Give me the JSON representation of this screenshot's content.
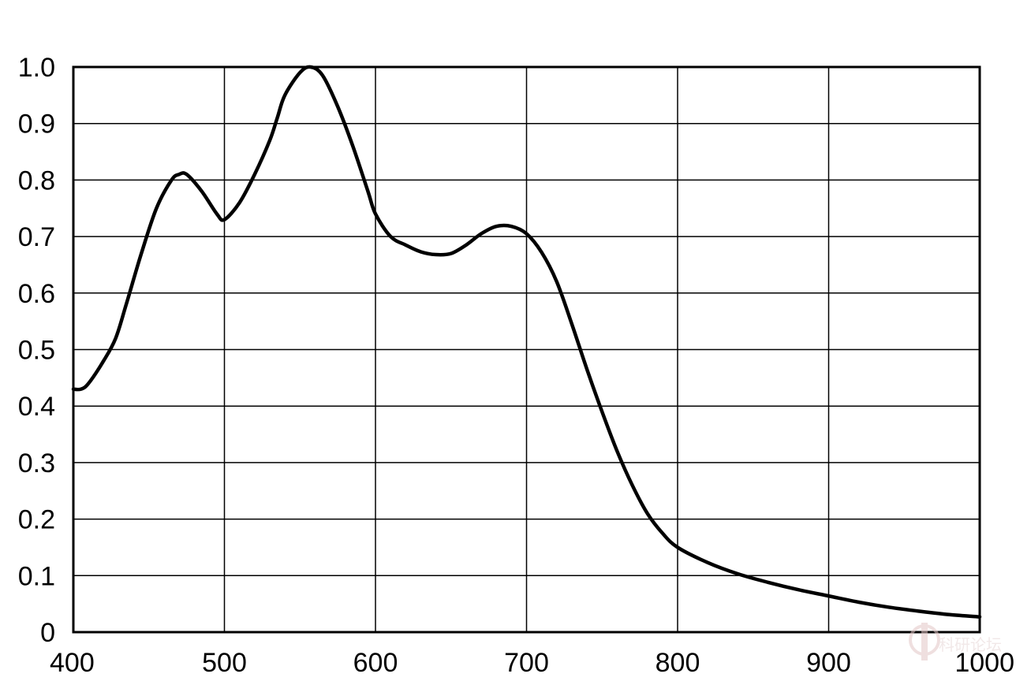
{
  "chart_data": {
    "type": "line",
    "title": "",
    "xlabel": "",
    "ylabel": "",
    "xlim": [
      400,
      1000
    ],
    "ylim": [
      0,
      1.0
    ],
    "grid": true,
    "x_ticks": [
      400,
      500,
      600,
      700,
      800,
      900,
      1000
    ],
    "x_tick_labels": [
      "400",
      "500",
      "600",
      "700",
      "800",
      "900",
      "1000"
    ],
    "y_ticks": [
      0,
      0.1,
      0.2,
      0.3,
      0.4,
      0.5,
      0.6,
      0.7,
      0.8,
      0.9,
      1.0
    ],
    "y_tick_labels": [
      "0",
      "0.1",
      "0.2",
      "0.3",
      "0.4",
      "0.5",
      "0.6",
      "0.7",
      "0.8",
      "0.9",
      "1.0"
    ],
    "series": [
      {
        "color": "#000000",
        "x": [
          400,
          405,
          410,
          420,
          428,
          435,
          445,
          455,
          465,
          470,
          475,
          485,
          495,
          500,
          510,
          520,
          530,
          535,
          540,
          550,
          557,
          565,
          575,
          585,
          595,
          600,
          610,
          620,
          630,
          640,
          650,
          660,
          670,
          680,
          690,
          700,
          710,
          720,
          730,
          740,
          750,
          760,
          770,
          780,
          790,
          800,
          820,
          840,
          860,
          880,
          900,
          920,
          940,
          960,
          980,
          1000
        ],
        "y": [
          0.43,
          0.43,
          0.44,
          0.48,
          0.52,
          0.58,
          0.67,
          0.75,
          0.8,
          0.81,
          0.81,
          0.78,
          0.74,
          0.73,
          0.76,
          0.81,
          0.87,
          0.91,
          0.95,
          0.99,
          1.0,
          0.985,
          0.93,
          0.86,
          0.78,
          0.74,
          0.7,
          0.685,
          0.673,
          0.668,
          0.67,
          0.685,
          0.705,
          0.718,
          0.718,
          0.705,
          0.672,
          0.62,
          0.545,
          0.465,
          0.39,
          0.32,
          0.26,
          0.21,
          0.175,
          0.15,
          0.123,
          0.103,
          0.088,
          0.075,
          0.064,
          0.053,
          0.044,
          0.037,
          0.031,
          0.027
        ]
      }
    ]
  },
  "watermark": {
    "text": "科研论坛"
  }
}
